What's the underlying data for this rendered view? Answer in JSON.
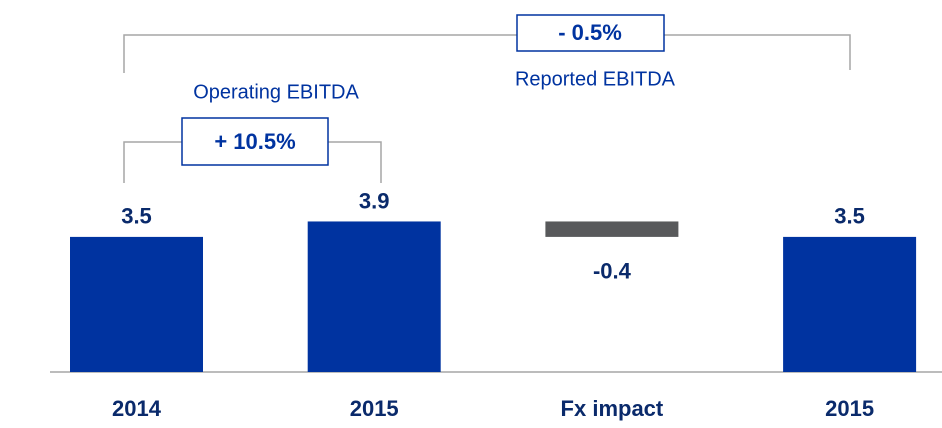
{
  "chart_data": {
    "type": "waterfall",
    "categories": [
      "2014",
      "2015",
      "Fx impact",
      "2015"
    ],
    "values": [
      3.5,
      3.9,
      -0.4,
      3.5
    ],
    "measure": [
      "absolute",
      "absolute",
      "relative",
      "absolute"
    ],
    "colors": [
      "#0033a0",
      "#0033a0",
      "#58595b",
      "#0033a0"
    ],
    "brackets": [
      {
        "label": "Operating EBITDA",
        "change": "+ 10.5%"
      },
      {
        "label": "Reported EBITDA",
        "change": "- 0.5%"
      }
    ]
  }
}
